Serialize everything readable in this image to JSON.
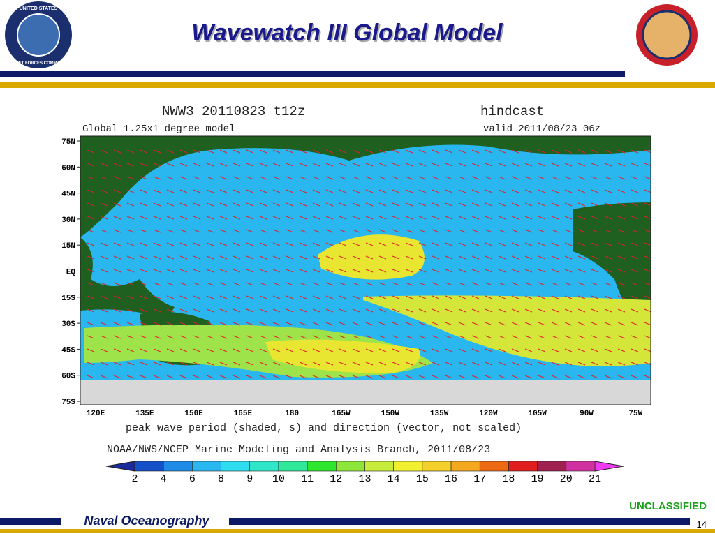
{
  "header": {
    "title": "Wavewatch III Global Model",
    "left_logo": [
      "UNITED STATES",
      "FLEET FORCES COMMAND"
    ]
  },
  "map": {
    "title": "NWW3 20110823 t12z",
    "mode": "hindcast",
    "model": "Global 1.25x1 degree model",
    "valid": "valid 2011/08/23 06z",
    "lat_labels": [
      "75N",
      "60N",
      "45N",
      "30N",
      "15N",
      "EQ",
      "15S",
      "30S",
      "45S",
      "60S",
      "75S"
    ],
    "lon_labels": [
      "120E",
      "135E",
      "150E",
      "165E",
      "180",
      "165W",
      "150W",
      "135W",
      "120W",
      "105W",
      "90W",
      "75W"
    ],
    "caption": "peak wave period (shaded, s) and direction (vector, not scaled)",
    "credit": "NOAA/NWS/NCEP Marine Modeling and Analysis Branch, 2011/08/23",
    "colorbar_labels": [
      2,
      4,
      6,
      8,
      9,
      10,
      11,
      12,
      13,
      14,
      15,
      16,
      17,
      18,
      19,
      20,
      21
    ]
  },
  "footer": {
    "org": "Naval Oceanography",
    "classification": "UNCLASSIFIED",
    "page": "14"
  }
}
